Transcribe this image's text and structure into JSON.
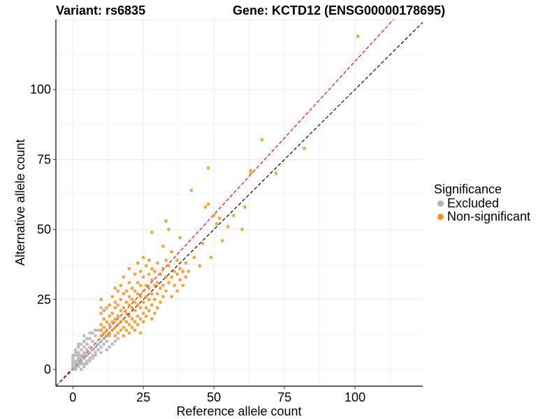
{
  "title_left": "Variant: rs6835",
  "title_right": "Gene: KCTD12 (ENSG00000178695)",
  "legend": {
    "title": "Significance",
    "items": [
      {
        "label": "Excluded",
        "color": "#b3b3b3"
      },
      {
        "label": "Non-significant",
        "color": "#f7941d"
      }
    ]
  },
  "chart_data": {
    "type": "scatter",
    "xlabel": "Reference allele count",
    "ylabel": "Alternative allele count",
    "xlim": [
      -6,
      124
    ],
    "ylim": [
      -6,
      125
    ],
    "xticks": [
      0,
      25,
      50,
      75,
      100
    ],
    "yticks": [
      0,
      25,
      50,
      75,
      100
    ],
    "grid": true,
    "reference_lines": [
      {
        "name": "identity",
        "slope": 1.0,
        "color": "#000000",
        "dash": "dashed"
      },
      {
        "name": "fit",
        "slope": 1.1,
        "color": "#ff0000",
        "dash": "dashed"
      }
    ],
    "series": [
      {
        "name": "Excluded",
        "color": "#b3b3b3",
        "points": [
          [
            0,
            0
          ],
          [
            0,
            1
          ],
          [
            0,
            2
          ],
          [
            0,
            3
          ],
          [
            0,
            4
          ],
          [
            0,
            5
          ],
          [
            1,
            0
          ],
          [
            1,
            1
          ],
          [
            1,
            2
          ],
          [
            1,
            3
          ],
          [
            1,
            5
          ],
          [
            1,
            6
          ],
          [
            2,
            1
          ],
          [
            2,
            2
          ],
          [
            2,
            3
          ],
          [
            2,
            4
          ],
          [
            2,
            5
          ],
          [
            2,
            6
          ],
          [
            2,
            8
          ],
          [
            3,
            0
          ],
          [
            3,
            2
          ],
          [
            3,
            3
          ],
          [
            3,
            4
          ],
          [
            3,
            5
          ],
          [
            3,
            7
          ],
          [
            3,
            9
          ],
          [
            4,
            1
          ],
          [
            4,
            2
          ],
          [
            4,
            4
          ],
          [
            4,
            5
          ],
          [
            4,
            6
          ],
          [
            4,
            8
          ],
          [
            4,
            10
          ],
          [
            5,
            2
          ],
          [
            5,
            3
          ],
          [
            5,
            5
          ],
          [
            5,
            7
          ],
          [
            5,
            9
          ],
          [
            6,
            3
          ],
          [
            6,
            4
          ],
          [
            6,
            6
          ],
          [
            6,
            8
          ],
          [
            6,
            11
          ],
          [
            7,
            4
          ],
          [
            7,
            5
          ],
          [
            7,
            7
          ],
          [
            7,
            10
          ],
          [
            7,
            13
          ],
          [
            8,
            5
          ],
          [
            8,
            6
          ],
          [
            8,
            8
          ],
          [
            8,
            12
          ],
          [
            9,
            7
          ],
          [
            9,
            9
          ],
          [
            9,
            14
          ],
          [
            10,
            6
          ],
          [
            10,
            8
          ],
          [
            10,
            10
          ],
          [
            10,
            22
          ],
          [
            11,
            9
          ],
          [
            11,
            11
          ],
          [
            12,
            7
          ],
          [
            12,
            10
          ],
          [
            13,
            8
          ],
          [
            13,
            12
          ],
          [
            14,
            9
          ],
          [
            15,
            10
          ],
          [
            16,
            11
          ],
          [
            2,
            9
          ],
          [
            1,
            7
          ],
          [
            5,
            11
          ],
          [
            6,
            13
          ],
          [
            8,
            14
          ],
          [
            4,
            12
          ]
        ]
      },
      {
        "name": "Non-significant",
        "color": "#f7941d",
        "points": [
          [
            10,
            12
          ],
          [
            10,
            14
          ],
          [
            10,
            16
          ],
          [
            10,
            20
          ],
          [
            10,
            25
          ],
          [
            11,
            13
          ],
          [
            11,
            15
          ],
          [
            11,
            18
          ],
          [
            11,
            21
          ],
          [
            12,
            12
          ],
          [
            12,
            14
          ],
          [
            12,
            17
          ],
          [
            12,
            22
          ],
          [
            13,
            13
          ],
          [
            13,
            16
          ],
          [
            13,
            19
          ],
          [
            13,
            23
          ],
          [
            14,
            14
          ],
          [
            14,
            17
          ],
          [
            14,
            20
          ],
          [
            14,
            26
          ],
          [
            15,
            12
          ],
          [
            15,
            15
          ],
          [
            15,
            18
          ],
          [
            15,
            22
          ],
          [
            15,
            24
          ],
          [
            15,
            29
          ],
          [
            16,
            13
          ],
          [
            16,
            16
          ],
          [
            16,
            19
          ],
          [
            16,
            23
          ],
          [
            16,
            28
          ],
          [
            17,
            14
          ],
          [
            17,
            17
          ],
          [
            17,
            21
          ],
          [
            17,
            25
          ],
          [
            17,
            30
          ],
          [
            18,
            12
          ],
          [
            18,
            15
          ],
          [
            18,
            18
          ],
          [
            18,
            22
          ],
          [
            18,
            27
          ],
          [
            18,
            33
          ],
          [
            19,
            14
          ],
          [
            19,
            17
          ],
          [
            19,
            20
          ],
          [
            19,
            24
          ],
          [
            19,
            28
          ],
          [
            20,
            13
          ],
          [
            20,
            16
          ],
          [
            20,
            19
          ],
          [
            20,
            23
          ],
          [
            20,
            26
          ],
          [
            20,
            31
          ],
          [
            20,
            36
          ],
          [
            21,
            15
          ],
          [
            21,
            18
          ],
          [
            21,
            22
          ],
          [
            21,
            25
          ],
          [
            21,
            29
          ],
          [
            22,
            14
          ],
          [
            22,
            17
          ],
          [
            22,
            21
          ],
          [
            22,
            24
          ],
          [
            22,
            28
          ],
          [
            22,
            34
          ],
          [
            23,
            16
          ],
          [
            23,
            19
          ],
          [
            23,
            23
          ],
          [
            23,
            27
          ],
          [
            23,
            31
          ],
          [
            23,
            38
          ],
          [
            24,
            13
          ],
          [
            24,
            18
          ],
          [
            24,
            22
          ],
          [
            24,
            26
          ],
          [
            24,
            30
          ],
          [
            24,
            35
          ],
          [
            25,
            17
          ],
          [
            25,
            20
          ],
          [
            25,
            24
          ],
          [
            25,
            28
          ],
          [
            25,
            33
          ],
          [
            25,
            40
          ],
          [
            26,
            19
          ],
          [
            26,
            22
          ],
          [
            26,
            26
          ],
          [
            26,
            30
          ],
          [
            26,
            37
          ],
          [
            27,
            21
          ],
          [
            27,
            25
          ],
          [
            27,
            29
          ],
          [
            27,
            34
          ],
          [
            27,
            39
          ],
          [
            28,
            18
          ],
          [
            28,
            23
          ],
          [
            28,
            27
          ],
          [
            28,
            32
          ],
          [
            28,
            36
          ],
          [
            28,
            49
          ],
          [
            29,
            20
          ],
          [
            29,
            25
          ],
          [
            29,
            30
          ],
          [
            29,
            35
          ],
          [
            30,
            22
          ],
          [
            30,
            27
          ],
          [
            30,
            31
          ],
          [
            30,
            38
          ],
          [
            31,
            24
          ],
          [
            31,
            29
          ],
          [
            31,
            34
          ],
          [
            32,
            26
          ],
          [
            32,
            30
          ],
          [
            32,
            36
          ],
          [
            32,
            44
          ],
          [
            33,
            28
          ],
          [
            33,
            33
          ],
          [
            33,
            39
          ],
          [
            33,
            53
          ],
          [
            34,
            31
          ],
          [
            34,
            37
          ],
          [
            34,
            50
          ],
          [
            35,
            26
          ],
          [
            35,
            33
          ],
          [
            35,
            42
          ],
          [
            36,
            30
          ],
          [
            36,
            35
          ],
          [
            37,
            28
          ],
          [
            37,
            34
          ],
          [
            37,
            39
          ],
          [
            38,
            32
          ],
          [
            38,
            36
          ],
          [
            38,
            47
          ],
          [
            39,
            30
          ],
          [
            39,
            35
          ],
          [
            40,
            33
          ],
          [
            40,
            38
          ],
          [
            41,
            35
          ],
          [
            42,
            64
          ],
          [
            43,
            40
          ],
          [
            45,
            37
          ],
          [
            46,
            45
          ],
          [
            47,
            58
          ],
          [
            48,
            72
          ],
          [
            48,
            59
          ],
          [
            49,
            40
          ],
          [
            50,
            55
          ],
          [
            51,
            52
          ],
          [
            52,
            54
          ],
          [
            53,
            46
          ],
          [
            55,
            51
          ],
          [
            57,
            55
          ],
          [
            60,
            50
          ],
          [
            61,
            58
          ],
          [
            63,
            70
          ],
          [
            63,
            71
          ],
          [
            67,
            82
          ],
          [
            72,
            70
          ],
          [
            82,
            79
          ],
          [
            101,
            119
          ]
        ]
      }
    ]
  }
}
